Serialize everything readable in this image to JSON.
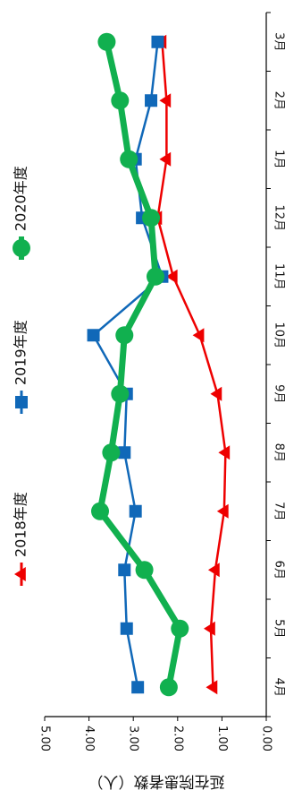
{
  "chart_data": {
    "type": "line",
    "orientation": "rotated-90-clockwise",
    "categories": [
      "4月",
      "5月",
      "6月",
      "7月",
      "8月",
      "9月",
      "10月",
      "11月",
      "12月",
      "1月",
      "2月",
      "3月"
    ],
    "ylabel": "延在院患者数（人）",
    "xlabel": "",
    "ylim": [
      0,
      5
    ],
    "yticks": [
      "0.00",
      "1.00",
      "2.00",
      "3.00",
      "4.00",
      "5.00"
    ],
    "grid": false,
    "legend_position": "left",
    "series": [
      {
        "name": "2018年度",
        "color": "#ee0000",
        "marker": "triangle",
        "values": [
          1.2,
          1.25,
          1.15,
          0.95,
          0.92,
          1.1,
          1.5,
          2.1,
          2.45,
          2.25,
          2.25,
          2.35
        ]
      },
      {
        "name": "2019年度",
        "color": "#1068b8",
        "marker": "square",
        "values": [
          2.9,
          3.15,
          3.2,
          2.95,
          3.2,
          3.15,
          3.9,
          2.35,
          2.8,
          2.95,
          2.6,
          2.45
        ]
      },
      {
        "name": "2020年度",
        "color": "#11b04f",
        "marker": "circle",
        "values": [
          2.2,
          1.95,
          2.75,
          3.75,
          3.5,
          3.3,
          3.2,
          2.5,
          2.6,
          3.1,
          3.3,
          3.6
        ]
      }
    ]
  }
}
